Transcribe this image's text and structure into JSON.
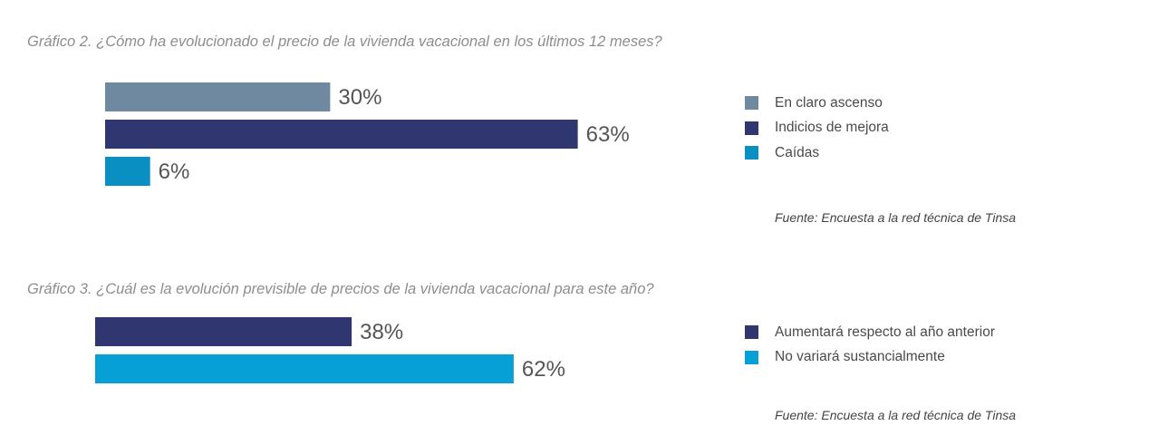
{
  "chart_data": [
    {
      "type": "bar",
      "orientation": "horizontal",
      "title": "Gráfico 2. ¿Cómo ha evolucionado el precio de la vivienda vacacional en los últimos 12 meses?",
      "categories": [
        "En claro ascenso",
        "Indicios de mejora",
        "Caídas"
      ],
      "values": [
        30,
        63,
        6
      ],
      "value_labels": [
        "30%",
        "63%",
        "6%"
      ],
      "unit": "%",
      "colors": [
        "#6f89a1",
        "#2f3670",
        "#0a8fc3"
      ],
      "legend": [
        "En claro ascenso",
        "Indicios de mejora",
        "Caídas"
      ],
      "legend_position": "right",
      "source": "Fuente: Encuesta a la red técnica de Tinsa",
      "grid": false
    },
    {
      "type": "bar",
      "orientation": "horizontal",
      "title": "Gráfico 3. ¿Cuál es la evolución previsible de precios de la vivienda vacacional para este año?",
      "categories": [
        "Aumentará respecto al año anterior",
        "No variará sustancialmente"
      ],
      "values": [
        38,
        62
      ],
      "value_labels": [
        "38%",
        "62%"
      ],
      "unit": "%",
      "colors": [
        "#2f3670",
        "#069fd6"
      ],
      "legend": [
        "Aumentará respecto al año anterior",
        "No variará sustancialmente"
      ],
      "legend_position": "right",
      "source": "Fuente: Encuesta a la red técnica de Tinsa",
      "grid": false
    }
  ]
}
